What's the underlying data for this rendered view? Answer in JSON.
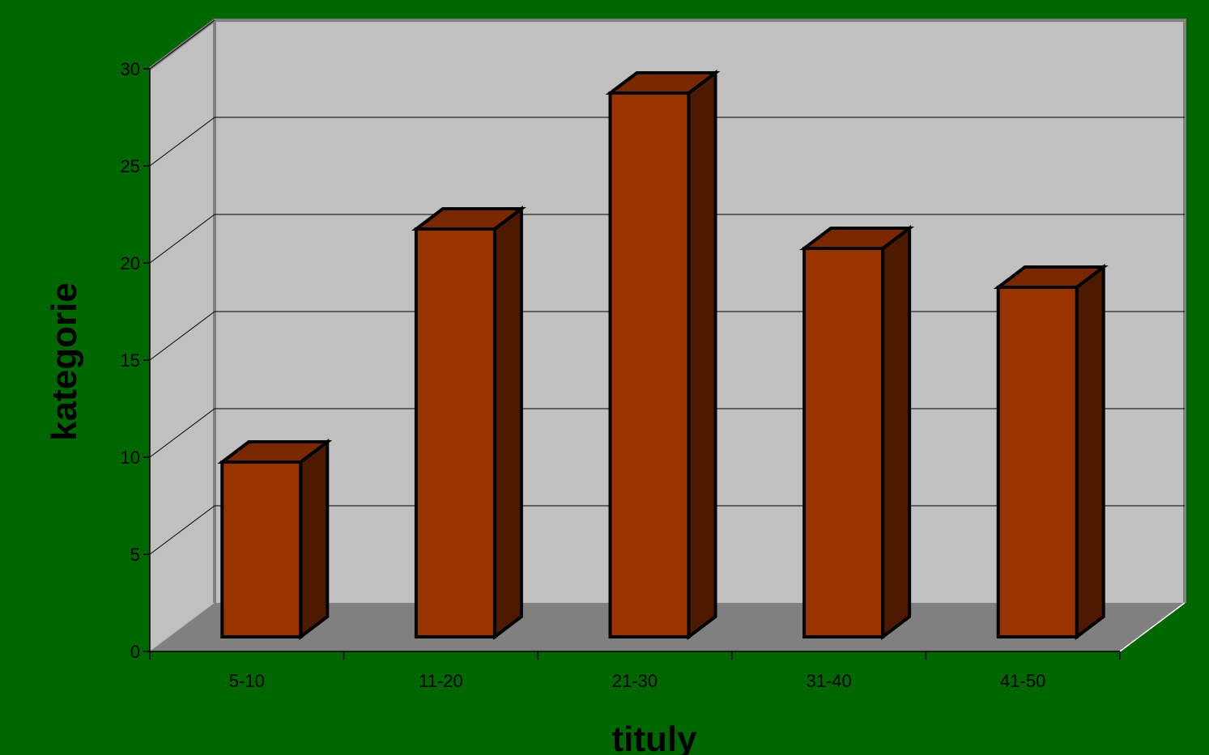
{
  "chart_data": {
    "type": "bar",
    "style": "3d-column",
    "title": "",
    "xlabel": "tituly",
    "ylabel": "kategorie",
    "categories": [
      "5-10",
      "11-20",
      "21-30",
      "31-40",
      "41-50"
    ],
    "values": [
      9,
      21,
      28,
      20,
      18
    ],
    "ylim": [
      0,
      30
    ],
    "yticks": [
      0,
      5,
      10,
      15,
      20,
      25,
      30
    ],
    "grid": true,
    "legend": "none"
  },
  "colors": {
    "background": "#006600",
    "back_wall": "#c0c0c0",
    "side_wall": "#c0c0c0",
    "floor": "#808080",
    "bar_front": "#993300",
    "bar_top": "#7a2800",
    "bar_side": "#4d1a00",
    "outline": "#000000",
    "wall_edge": "#808080"
  }
}
